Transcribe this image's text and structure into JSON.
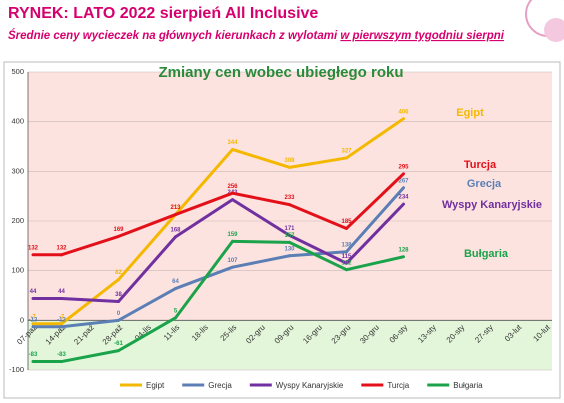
{
  "header": {
    "title": "RYNEK: LATO 2022 sierpień All Inclusive",
    "subtitle": "Średnie ceny wycieczek na głównych kierunkach z wylotami ",
    "subtitle_underlined": "w pierwszym tygodniu sierpni"
  },
  "chart_data": {
    "type": "line",
    "title": "Zmiany cen wobec ubiegłego roku",
    "categories": [
      "07-paź",
      "14-paź",
      "21-paź",
      "28-paź",
      "04-lis",
      "11-lis",
      "18-lis",
      "25-lis",
      "02-gru",
      "09-gru",
      "16-gru",
      "23-gru",
      "30-gru",
      "06-sty",
      "13-sty",
      "20-sty",
      "27-sty",
      "03-lut",
      "10-lut"
    ],
    "series": [
      {
        "name": "Egipt",
        "color": "#f5b800",
        "values": [
          -7,
          -7,
          null,
          82,
          null,
          213,
          null,
          344,
          null,
          308,
          null,
          327,
          null,
          406,
          null,
          null,
          null,
          null,
          null
        ]
      },
      {
        "name": "Grecja",
        "color": "#5b7fb5",
        "values": [
          -13,
          -13,
          null,
          0,
          null,
          64,
          null,
          107,
          null,
          130,
          null,
          138,
          null,
          267,
          null,
          null,
          null,
          null,
          null
        ]
      },
      {
        "name": "Wyspy Kanaryjskie",
        "color": "#7030a0",
        "values": [
          44,
          44,
          null,
          38,
          null,
          168,
          null,
          243,
          null,
          171,
          null,
          115,
          null,
          234,
          null,
          null,
          null,
          null,
          null
        ]
      },
      {
        "name": "Turcja",
        "color": "#e3101a",
        "values": [
          132,
          132,
          null,
          169,
          null,
          213,
          null,
          256,
          null,
          233,
          null,
          185,
          null,
          295,
          null,
          null,
          null,
          null,
          null
        ]
      },
      {
        "name": "Bułgaria",
        "color": "#1aa34a",
        "values": [
          -83,
          -83,
          null,
          -61,
          null,
          5,
          null,
          159,
          null,
          157,
          null,
          102,
          null,
          128,
          null,
          null,
          null,
          null,
          null
        ]
      }
    ],
    "connect_gaps": true,
    "ylim": [
      -100,
      500
    ],
    "yticks": [
      -100,
      0,
      100,
      200,
      300,
      400,
      500
    ],
    "grid": true
  }
}
